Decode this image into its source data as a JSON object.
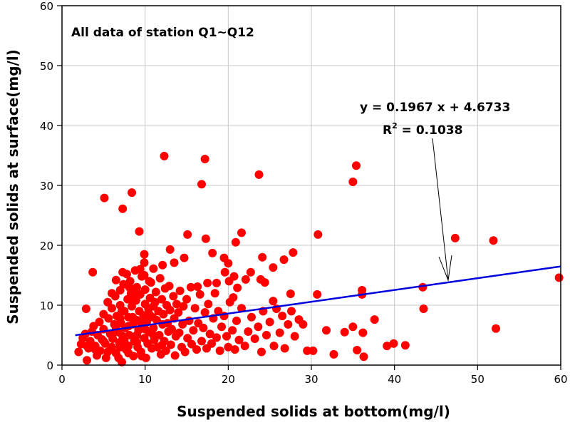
{
  "chart_data": {
    "type": "scatter",
    "title": "",
    "annotation": "All data of station Q1~Q12",
    "xlabel": "Suspended solids at bottom(mg/l)",
    "ylabel": "Suspended solids at surface(mg/l)",
    "xlim": [
      0,
      60
    ],
    "ylim": [
      0,
      60
    ],
    "xticks": [
      "0",
      "10",
      "20",
      "30",
      "40",
      "50",
      "60"
    ],
    "yticks": [
      "0",
      "10",
      "20",
      "30",
      "40",
      "50",
      "60"
    ],
    "grid": true,
    "legend": "none",
    "marker_color": "#ff0000",
    "trendline": {
      "equation": "y = 0.1967 x + 4.6733",
      "r2_prefix": "R",
      "r2_sup": "2",
      "r2_value": " = 0.1038",
      "slope": 0.1967,
      "intercept": 4.6733,
      "x_range": [
        1.6,
        60
      ],
      "color": "#0000dd"
    },
    "points": [
      [
        5.1,
        27.9
      ],
      [
        8.4,
        28.8
      ],
      [
        7.3,
        26.1
      ],
      [
        9.3,
        22.3
      ],
      [
        12.3,
        34.9
      ],
      [
        17.2,
        34.4
      ],
      [
        16.8,
        30.2
      ],
      [
        23.7,
        31.8
      ],
      [
        15.1,
        21.8
      ],
      [
        17.3,
        21.1
      ],
      [
        21.6,
        22.1
      ],
      [
        20.9,
        20.5
      ],
      [
        3.7,
        15.5
      ],
      [
        27.8,
        18.8
      ],
      [
        26.7,
        17.6
      ],
      [
        24.1,
        18.0
      ],
      [
        25.4,
        16.3
      ],
      [
        22.7,
        15.5
      ],
      [
        18.1,
        18.7
      ],
      [
        13.0,
        19.3
      ],
      [
        14.7,
        17.9
      ],
      [
        13.5,
        17.1
      ],
      [
        12.1,
        16.7
      ],
      [
        11.0,
        16.1
      ],
      [
        9.9,
        18.5
      ],
      [
        9.9,
        17.1
      ],
      [
        19.5,
        17.9
      ],
      [
        20.0,
        17.0
      ],
      [
        19.6,
        15.5
      ],
      [
        20.7,
        14.8
      ],
      [
        20.1,
        14.0
      ],
      [
        22.1,
        14.3
      ],
      [
        23.9,
        14.3
      ],
      [
        24.4,
        13.8
      ],
      [
        21.1,
        12.9
      ],
      [
        20.6,
        11.3
      ],
      [
        27.5,
        11.9
      ],
      [
        25.4,
        10.7
      ],
      [
        16.3,
        13.1
      ],
      [
        17.5,
        13.7
      ],
      [
        18.6,
        13.7
      ],
      [
        2.9,
        9.4
      ],
      [
        30.8,
        21.8
      ],
      [
        47.3,
        21.2
      ],
      [
        51.9,
        20.8
      ],
      [
        59.8,
        14.6
      ],
      [
        30.7,
        11.8
      ],
      [
        36.1,
        12.5
      ],
      [
        36.1,
        11.8
      ],
      [
        43.4,
        13.0
      ],
      [
        43.5,
        9.4
      ],
      [
        52.2,
        6.1
      ],
      [
        35.4,
        33.3
      ],
      [
        35.0,
        30.6
      ],
      [
        37.6,
        7.6
      ],
      [
        31.8,
        5.8
      ],
      [
        34.0,
        5.5
      ],
      [
        35.0,
        6.4
      ],
      [
        36.2,
        5.4
      ],
      [
        32.7,
        1.8
      ],
      [
        35.5,
        2.5
      ],
      [
        36.3,
        1.4
      ],
      [
        39.1,
        3.2
      ],
      [
        39.9,
        3.6
      ],
      [
        41.3,
        3.3
      ],
      [
        30.2,
        2.4
      ],
      [
        29.5,
        2.4
      ],
      [
        2,
        2.2
      ],
      [
        2.3,
        3.5
      ],
      [
        2.5,
        4.5
      ],
      [
        2.8,
        5.2
      ],
      [
        3,
        0.8
      ],
      [
        3.2,
        2.8
      ],
      [
        3.4,
        4
      ],
      [
        3.6,
        5.6
      ],
      [
        3.8,
        6.5
      ],
      [
        4,
        3.2
      ],
      [
        4.2,
        1.6
      ],
      [
        4.3,
        5
      ],
      [
        4.5,
        7.2
      ],
      [
        4.6,
        2.4
      ],
      [
        4.8,
        4.3
      ],
      [
        5,
        8.5
      ],
      [
        5,
        6
      ],
      [
        5.2,
        3.6
      ],
      [
        5.3,
        1.2
      ],
      [
        5.5,
        10.5
      ],
      [
        5.6,
        7.8
      ],
      [
        5.8,
        5.2
      ],
      [
        5.9,
        2.9
      ],
      [
        6,
        9.5
      ],
      [
        6.1,
        4.4
      ],
      [
        6.3,
        6.8
      ],
      [
        6.4,
        11.5
      ],
      [
        6.5,
        2
      ],
      [
        6.6,
        8.2
      ],
      [
        6.8,
        5.5
      ],
      [
        6.9,
        3.8
      ],
      [
        7,
        12.5
      ],
      [
        7,
        10
      ],
      [
        7.1,
        7
      ],
      [
        7.2,
        0.5
      ],
      [
        7.3,
        4.8
      ],
      [
        7.4,
        13.5
      ],
      [
        7.5,
        9
      ],
      [
        7.6,
        6.2
      ],
      [
        7.7,
        2.6
      ],
      [
        7.8,
        15.2
      ],
      [
        7.9,
        11
      ],
      [
        8,
        8
      ],
      [
        8,
        3.2
      ],
      [
        8.1,
        5
      ],
      [
        8.2,
        14
      ],
      [
        8.3,
        12
      ],
      [
        8.4,
        9.8
      ],
      [
        8.5,
        6.8
      ],
      [
        8.6,
        1.5
      ],
      [
        8.7,
        4
      ],
      [
        8.8,
        15.8
      ],
      [
        8.9,
        10.8
      ],
      [
        9,
        7.5
      ],
      [
        9,
        13
      ],
      [
        9.1,
        3
      ],
      [
        9.2,
        5.8
      ],
      [
        9.3,
        9
      ],
      [
        9.4,
        11.8
      ],
      [
        9.5,
        2.2
      ],
      [
        9.6,
        14.8
      ],
      [
        9.7,
        6.5
      ],
      [
        9.8,
        8.3
      ],
      [
        9.9,
        4.5
      ],
      [
        10,
        10.2
      ],
      [
        10,
        12.6
      ],
      [
        10.1,
        1.2
      ],
      [
        10.2,
        7.2
      ],
      [
        10.3,
        3.6
      ],
      [
        10.4,
        9.4
      ],
      [
        10.5,
        5.5
      ],
      [
        10.6,
        11.2
      ],
      [
        10.7,
        13.8
      ],
      [
        10.8,
        2.8
      ],
      [
        10.9,
        8
      ],
      [
        11,
        6.2
      ],
      [
        11.1,
        4.2
      ],
      [
        11.2,
        10.5
      ],
      [
        11.3,
        12.2
      ],
      [
        11.4,
        7.5
      ],
      [
        11.5,
        3
      ],
      [
        11.6,
        9
      ],
      [
        11.7,
        5
      ],
      [
        11.8,
        14.5
      ],
      [
        11.9,
        1.8
      ],
      [
        12,
        11
      ],
      [
        12.1,
        6.8
      ],
      [
        12.2,
        8.5
      ],
      [
        12.3,
        4
      ],
      [
        12.4,
        12.8
      ],
      [
        12.5,
        2.4
      ],
      [
        12.6,
        10
      ],
      [
        12.7,
        7
      ],
      [
        12.8,
        5.6
      ],
      [
        12.9,
        13.2
      ],
      [
        13,
        9.2
      ],
      [
        13.1,
        3.4
      ],
      [
        13.2,
        6
      ],
      [
        13.4,
        11.5
      ],
      [
        13.5,
        7.8
      ],
      [
        13.6,
        1.6
      ],
      [
        13.7,
        4.8
      ],
      [
        13.8,
        10.2
      ],
      [
        14,
        8.8
      ],
      [
        14.1,
        5.4
      ],
      [
        14.2,
        12.4
      ],
      [
        14.4,
        3
      ],
      [
        14.5,
        6.8
      ],
      [
        14.6,
        9.8
      ],
      [
        14.8,
        2.2
      ],
      [
        15,
        11
      ],
      [
        15.1,
        4.5
      ],
      [
        15.3,
        7.4
      ],
      [
        15.5,
        13
      ],
      [
        15.6,
        3.5
      ],
      [
        15.8,
        5.8
      ],
      [
        16,
        9.5
      ],
      [
        16.2,
        2.6
      ],
      [
        16.4,
        7
      ],
      [
        16.6,
        11.8
      ],
      [
        16.8,
        4
      ],
      [
        17,
        6.2
      ],
      [
        17.2,
        8.8
      ],
      [
        17.4,
        2.8
      ],
      [
        17.6,
        10.2
      ],
      [
        17.8,
        5.2
      ],
      [
        18,
        3.6
      ],
      [
        18.2,
        7.8
      ],
      [
        18.4,
        12
      ],
      [
        18.6,
        4.6
      ],
      [
        18.8,
        9
      ],
      [
        19,
        2.4
      ],
      [
        19.2,
        6.4
      ],
      [
        19.5,
        8.2
      ],
      [
        19.8,
        4.8
      ],
      [
        20,
        3
      ],
      [
        20.2,
        10.5
      ],
      [
        20.5,
        5.8
      ],
      [
        20.8,
        2.6
      ],
      [
        21,
        7.4
      ],
      [
        21.3,
        4.2
      ],
      [
        21.6,
        9.5
      ],
      [
        22,
        3.2
      ],
      [
        22.4,
        5.6
      ],
      [
        22.8,
        8
      ],
      [
        23.2,
        4.4
      ],
      [
        23.6,
        6.4
      ],
      [
        24,
        2.2
      ],
      [
        24.2,
        9
      ],
      [
        24.6,
        5
      ],
      [
        25,
        7.2
      ],
      [
        25.5,
        3.2
      ],
      [
        25.8,
        9.4
      ],
      [
        26.2,
        5.4
      ],
      [
        26.5,
        8.2
      ],
      [
        26.8,
        2.8
      ],
      [
        27.2,
        6.8
      ],
      [
        27.6,
        9
      ],
      [
        28,
        4.8
      ],
      [
        28.5,
        7.6
      ],
      [
        29,
        6.8
      ],
      [
        6,
        5
      ],
      [
        6.5,
        6
      ],
      [
        7,
        7.8
      ],
      [
        7.5,
        4
      ],
      [
        8,
        6.5
      ],
      [
        8.5,
        8
      ],
      [
        9,
        5
      ],
      [
        9.5,
        7
      ],
      [
        10,
        6
      ],
      [
        10.5,
        8.5
      ],
      [
        11,
        5
      ],
      [
        7,
        3
      ],
      [
        8,
        2
      ],
      [
        9,
        3.8
      ],
      [
        6,
        3
      ],
      [
        5,
        4
      ],
      [
        4,
        2.6
      ],
      [
        3,
        3.2
      ],
      [
        5.5,
        2.2
      ],
      [
        6.8,
        1.2
      ],
      [
        9.6,
        1.5
      ],
      [
        12,
        3.3
      ],
      [
        11,
        9.8
      ],
      [
        8.5,
        11
      ],
      [
        7.2,
        9
      ],
      [
        6,
        12
      ],
      [
        9,
        12.2
      ],
      [
        10.5,
        14
      ],
      [
        8.1,
        13
      ],
      [
        9.4,
        16
      ],
      [
        9.9,
        15
      ],
      [
        6.5,
        14.2
      ],
      [
        7.3,
        15.5
      ]
    ]
  }
}
